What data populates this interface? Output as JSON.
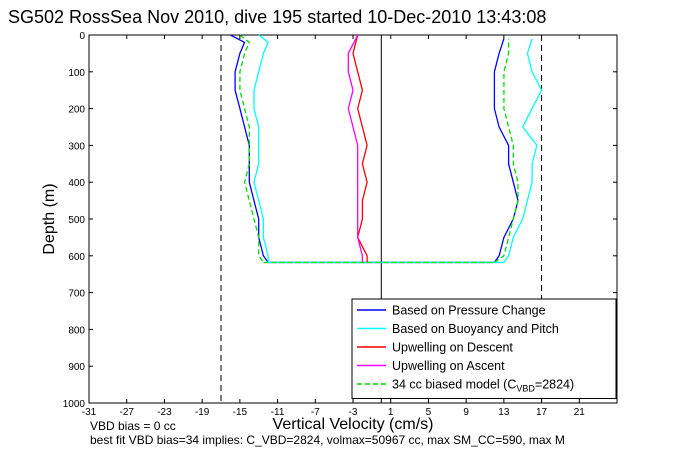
{
  "chart_data": {
    "type": "line",
    "title": "SG502 RossSea Nov 2010, dive 195 started 10-Dec-2010 13:43:08",
    "xlabel": "Vertical Velocity (cm/s)",
    "ylabel": "Depth (m)",
    "xlim": [
      -31,
      25
    ],
    "ylim": [
      0,
      1000
    ],
    "y_reversed": true,
    "grid": false,
    "legend_position": "bottom-right",
    "x_ticks": [
      -31,
      -27,
      -23,
      -19,
      -15,
      -11,
      -7,
      -3,
      1,
      5,
      9,
      13,
      17,
      21
    ],
    "y_ticks": [
      0,
      100,
      200,
      300,
      400,
      500,
      600,
      700,
      800,
      900,
      1000
    ],
    "vlines": [
      {
        "x": -17,
        "style": "dashed"
      },
      {
        "x": 0,
        "style": "solid"
      },
      {
        "x": 17,
        "style": "dashed"
      }
    ],
    "series": [
      {
        "name": "Based on Pressure Change",
        "color": "#0000ff",
        "descent": {
          "depth": [
            0,
            20,
            50,
            100,
            150,
            200,
            250,
            300,
            350,
            400,
            450,
            500,
            550,
            600,
            618
          ],
          "w": [
            -16,
            -14.5,
            -15,
            -15.5,
            -15.5,
            -15,
            -14.5,
            -14,
            -14,
            -14,
            -13.5,
            -13,
            -13,
            -12.5,
            -12
          ]
        },
        "ascent": {
          "depth": [
            618,
            600,
            550,
            500,
            450,
            400,
            350,
            300,
            250,
            200,
            150,
            100,
            50,
            10
          ],
          "w": [
            12,
            12.5,
            13,
            14,
            14.5,
            14,
            13.5,
            13.5,
            12.5,
            12,
            12,
            12,
            12.5,
            13
          ]
        }
      },
      {
        "name": "Based on Buoyancy and Pitch",
        "color": "#00ffff",
        "descent": {
          "depth": [
            0,
            20,
            50,
            100,
            150,
            200,
            250,
            300,
            350,
            400,
            450,
            500,
            550,
            600,
            618
          ],
          "w": [
            -13,
            -12,
            -12.5,
            -13,
            -13.5,
            -13.5,
            -13,
            -13,
            -13,
            -13.5,
            -13,
            -12.5,
            -12.5,
            -12,
            -12
          ]
        },
        "ascent": {
          "depth": [
            618,
            600,
            550,
            500,
            450,
            400,
            350,
            300,
            250,
            200,
            150,
            100,
            50,
            10
          ],
          "w": [
            13,
            13.5,
            14,
            15,
            15.5,
            16,
            16,
            16.5,
            15,
            16,
            17,
            16,
            15.5,
            16
          ]
        }
      },
      {
        "name": "Upwelling on Descent",
        "color": "#ff0000",
        "profile": {
          "depth": [
            0,
            50,
            100,
            150,
            200,
            250,
            300,
            350,
            400,
            450,
            500,
            550,
            600,
            618
          ],
          "w": [
            -2.5,
            -3,
            -2.5,
            -2,
            -2.5,
            -2,
            -1.5,
            -2,
            -1.5,
            -2,
            -2,
            -2.5,
            -1.5,
            -1.5
          ]
        }
      },
      {
        "name": "Upwelling on Ascent",
        "color": "#ff00ff",
        "profile": {
          "depth": [
            0,
            50,
            100,
            150,
            200,
            250,
            300,
            350,
            400,
            450,
            500,
            550,
            600,
            618
          ],
          "w": [
            -2.5,
            -3.5,
            -3.5,
            -3,
            -3.5,
            -3,
            -2.5,
            -2.5,
            -2.5,
            -2.5,
            -2.5,
            -2.5,
            -2,
            -2
          ]
        }
      },
      {
        "name": "34 cc biased model (C_VBD=2824)",
        "color": "#00dd00",
        "dashed": true,
        "descent": {
          "depth": [
            0,
            20,
            50,
            100,
            150,
            200,
            250,
            300,
            350,
            400,
            450,
            500,
            550,
            600,
            618
          ],
          "w": [
            -15,
            -14,
            -14.5,
            -15,
            -15,
            -14.5,
            -14,
            -14,
            -14,
            -14.5,
            -14,
            -13.5,
            -13,
            -13,
            -12.5
          ]
        },
        "ascent": {
          "depth": [
            618,
            600,
            550,
            500,
            450,
            400,
            350,
            300,
            250,
            200,
            150,
            100,
            50,
            10
          ],
          "w": [
            12,
            13,
            13.5,
            14,
            14.5,
            14.5,
            14,
            14,
            13.5,
            13,
            13,
            13,
            13.5,
            13.5
          ]
        }
      }
    ],
    "legend": [
      {
        "text": "Based on Pressure Change",
        "color": "#0000ff",
        "dashed": false
      },
      {
        "text": "Based on Buoyancy and Pitch",
        "color": "#00ffff",
        "dashed": false
      },
      {
        "text": "Upwelling on Descent",
        "color": "#ff0000",
        "dashed": false
      },
      {
        "text": "Upwelling on Ascent",
        "color": "#ff00ff",
        "dashed": false
      },
      {
        "text": "34 cc biased model (C",
        "sub": "VBD",
        "tail": "=2824)",
        "color": "#00dd00",
        "dashed": true
      }
    ]
  },
  "footer": {
    "line1": "VBD bias = 0 cc",
    "line2": "best fit VBD bias=34 implies: C_VBD=2824, volmax=50967 cc, max SM_CC=590, max M"
  }
}
